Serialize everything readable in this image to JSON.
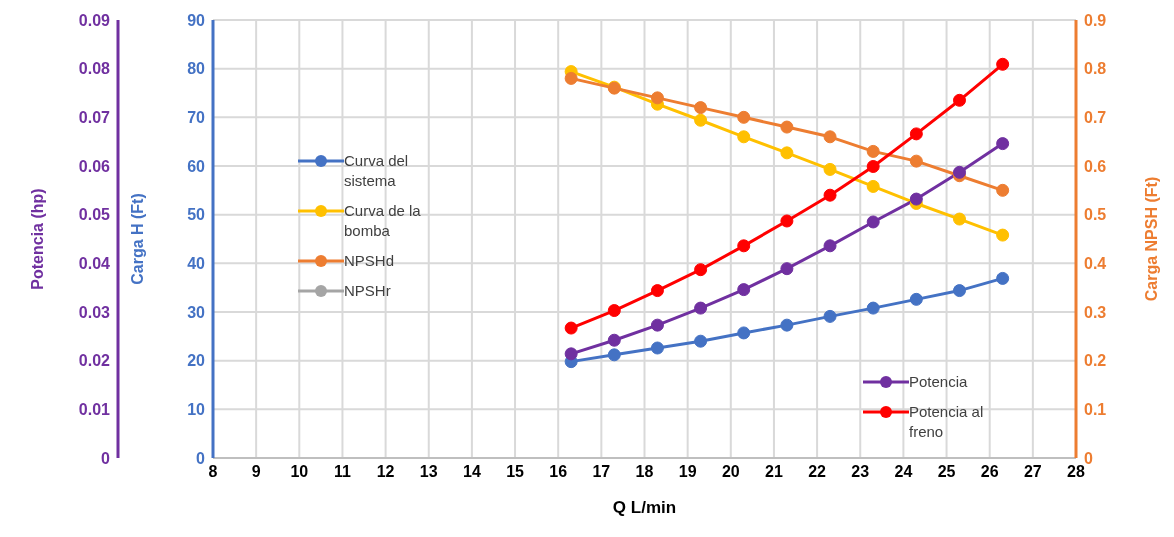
{
  "chart_data": {
    "type": "line",
    "xlabel": "Q L/min",
    "ylabel": "Carga H (Ft)",
    "y2label": "Carga NPSH (Ft)",
    "y3label": "Potencia (hp)",
    "x": [
      16.3,
      17.3,
      18.3,
      19.3,
      20.3,
      21.3,
      22.3,
      23.3,
      24.3,
      25.3,
      26.3
    ],
    "series": [
      {
        "name": "Curva del sistema",
        "color": "#4472c4",
        "values": [
          19.8,
          21.2,
          22.6,
          24.0,
          25.7,
          27.3,
          29.1,
          30.8,
          32.6,
          34.4,
          36.9
        ]
      },
      {
        "name": "Curva de la bomba",
        "color": "#ffc000",
        "values": [
          79.4,
          76.2,
          72.7,
          69.4,
          66.0,
          62.7,
          59.3,
          55.8,
          52.3,
          49.1,
          45.8
        ]
      },
      {
        "name": "NPSHd",
        "color": "#ed7d31",
        "axis": "y2",
        "values": [
          0.78,
          0.76,
          0.74,
          0.72,
          0.7,
          0.68,
          0.66,
          0.63,
          0.61,
          0.58,
          0.55
        ]
      },
      {
        "name": "NPSHr",
        "color": "#a5a5a5",
        "axis": "y2",
        "values": [
          null,
          null,
          null,
          null,
          null,
          null,
          null,
          null,
          null,
          null,
          null
        ]
      },
      {
        "name": "Potencia",
        "color": "#7030a0",
        "axis": "y3",
        "values": [
          0.0214,
          0.0242,
          0.0273,
          0.0308,
          0.0346,
          0.0389,
          0.0436,
          0.0485,
          0.0532,
          0.0587,
          0.0646
        ]
      },
      {
        "name": "Potencia al freno",
        "color": "#ff0000",
        "axis": "y3",
        "values": [
          0.0267,
          0.0303,
          0.0344,
          0.0387,
          0.0436,
          0.0487,
          0.054,
          0.0599,
          0.0666,
          0.0735,
          0.0809
        ]
      }
    ],
    "xlim": [
      8,
      28
    ],
    "xticks": [
      8,
      9,
      10,
      11,
      12,
      13,
      14,
      15,
      16,
      17,
      18,
      19,
      20,
      21,
      22,
      23,
      24,
      25,
      26,
      27,
      28
    ],
    "ylim": [
      0,
      90
    ],
    "yticks": [
      0,
      10,
      20,
      30,
      40,
      50,
      60,
      70,
      80,
      90
    ],
    "y2lim": [
      0,
      0.9
    ],
    "y2ticks": [
      0,
      0.1,
      0.2,
      0.3,
      0.4,
      0.5,
      0.6,
      0.7,
      0.8,
      0.9
    ],
    "y3lim": [
      0,
      0.09
    ],
    "y3ticks": [
      0,
      0.01,
      0.02,
      0.03,
      0.04,
      0.05,
      0.06,
      0.07,
      0.08,
      0.09
    ],
    "grid": true,
    "legend": "left",
    "marker": "circle",
    "line_style": "solid"
  }
}
